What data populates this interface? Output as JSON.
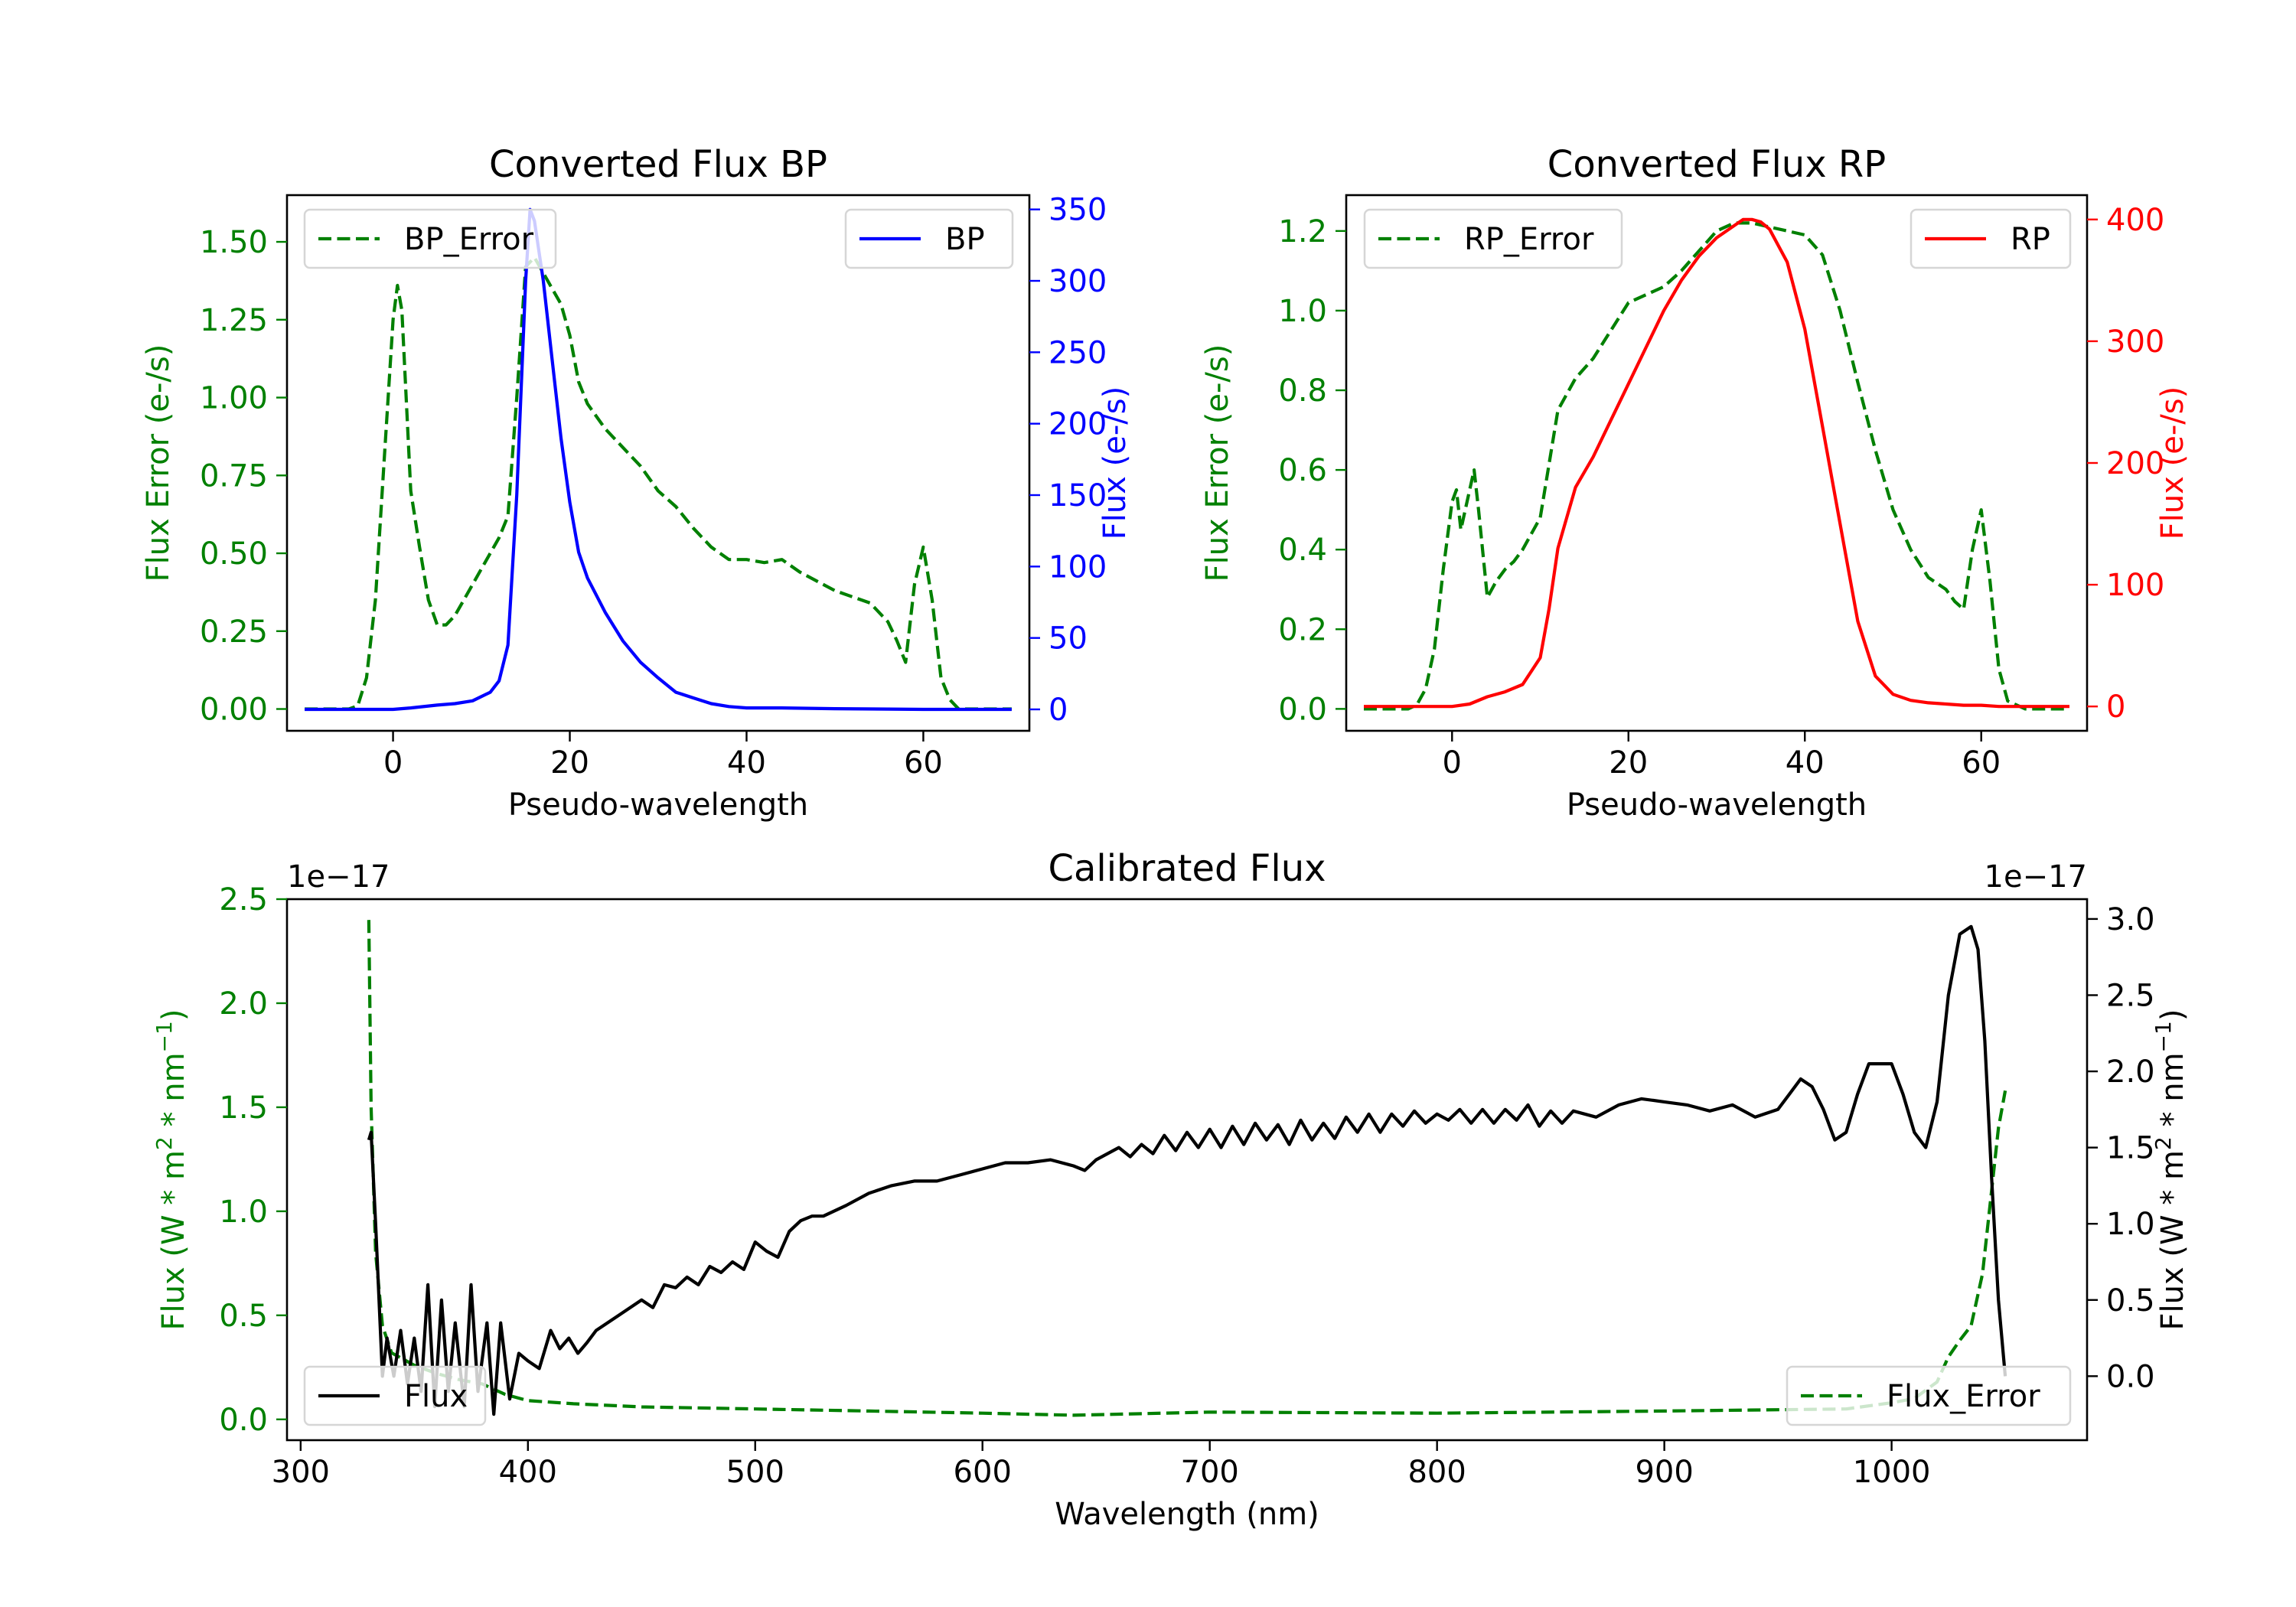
{
  "figure": {
    "background": "#ffffff"
  },
  "chart_data": [
    {
      "id": "bp",
      "type": "line",
      "title": "Converted Flux BP",
      "xlabel": "Pseudo-wavelength",
      "xlim": [
        -12,
        72
      ],
      "xticks": [
        0,
        20,
        40,
        60
      ],
      "tick_labels": {
        "x": [
          "0",
          "20",
          "40",
          "60"
        ],
        "y_left": [
          "0.00",
          "0.25",
          "0.50",
          "0.75",
          "1.00",
          "1.25",
          "1.50"
        ],
        "y_right": [
          "0",
          "50",
          "100",
          "150",
          "200",
          "250",
          "300",
          "350"
        ]
      },
      "left_axis": {
        "label": "Flux Error (e-/s)",
        "color": "#008000",
        "ylim": [
          -0.07,
          1.65
        ],
        "ticks": [
          0,
          0.25,
          0.5,
          0.75,
          1.0,
          1.25,
          1.5
        ]
      },
      "right_axis": {
        "label": "Flux (e-/s)",
        "color": "#0000ff",
        "ylim": [
          -15,
          360
        ],
        "ticks": [
          0,
          50,
          100,
          150,
          200,
          250,
          300,
          350
        ]
      },
      "series": [
        {
          "name": "BP_Error",
          "axis": "left",
          "color": "#008000",
          "dash": "dashed",
          "x": [
            -10,
            -5,
            -4,
            -3,
            -2,
            -1,
            0,
            0.5,
            1,
            2,
            3,
            4,
            5,
            6,
            7,
            8,
            10,
            12,
            13,
            14,
            15,
            16,
            17,
            18,
            19,
            20,
            21,
            22,
            24,
            26,
            28,
            30,
            32,
            34,
            36,
            38,
            40,
            42,
            44,
            46,
            50,
            54,
            56,
            57,
            58,
            59,
            60,
            61,
            62,
            63,
            64,
            65,
            70
          ],
          "values": [
            0,
            0,
            0.01,
            0.1,
            0.35,
            0.8,
            1.25,
            1.36,
            1.28,
            0.7,
            0.52,
            0.35,
            0.27,
            0.27,
            0.3,
            0.35,
            0.45,
            0.55,
            0.62,
            1.0,
            1.42,
            1.45,
            1.4,
            1.35,
            1.3,
            1.2,
            1.05,
            0.98,
            0.9,
            0.84,
            0.78,
            0.7,
            0.65,
            0.58,
            0.52,
            0.48,
            0.48,
            0.47,
            0.48,
            0.44,
            0.38,
            0.34,
            0.28,
            0.22,
            0.15,
            0.4,
            0.52,
            0.35,
            0.1,
            0.03,
            0,
            0,
            0
          ]
        },
        {
          "name": "BP",
          "axis": "right",
          "color": "#0000ff",
          "dash": "solid",
          "x": [
            -10,
            -5,
            0,
            2,
            5,
            7,
            9,
            11,
            12,
            13,
            14,
            15,
            15.5,
            16,
            17,
            18,
            19,
            20,
            21,
            22,
            24,
            26,
            28,
            30,
            32,
            34,
            36,
            38,
            40,
            44,
            50,
            56,
            60,
            66,
            70
          ],
          "values": [
            0,
            0,
            0,
            1,
            3,
            4,
            6,
            12,
            20,
            45,
            150,
            300,
            350,
            342,
            300,
            245,
            190,
            145,
            110,
            92,
            68,
            48,
            33,
            22,
            12,
            8,
            4,
            2,
            1,
            1,
            0.5,
            0.2,
            0,
            0,
            0
          ]
        }
      ],
      "legends": [
        {
          "position": "upper left",
          "entries": [
            "BP_Error"
          ]
        },
        {
          "position": "upper right",
          "entries": [
            "BP"
          ]
        }
      ]
    },
    {
      "id": "rp",
      "type": "line",
      "title": "Converted Flux RP",
      "xlabel": "Pseudo-wavelength",
      "xlim": [
        -12,
        72
      ],
      "xticks": [
        0,
        20,
        40,
        60
      ],
      "tick_labels": {
        "x": [
          "0",
          "20",
          "40",
          "60"
        ],
        "y_left": [
          "0.0",
          "0.2",
          "0.4",
          "0.6",
          "0.8",
          "1.0",
          "1.2"
        ],
        "y_right": [
          "0",
          "100",
          "200",
          "300",
          "400"
        ]
      },
      "left_axis": {
        "label": "Flux Error (e-/s)",
        "color": "#008000",
        "ylim": [
          -0.055,
          1.29
        ],
        "ticks": [
          0,
          0.2,
          0.4,
          0.6,
          0.8,
          1.0,
          1.2
        ]
      },
      "right_axis": {
        "label": "Flux (e-/s)",
        "color": "#ff0000",
        "ylim": [
          -20,
          420
        ],
        "ticks": [
          0,
          100,
          200,
          300,
          400
        ]
      },
      "series": [
        {
          "name": "RP_Error",
          "axis": "left",
          "color": "#008000",
          "dash": "dashed",
          "x": [
            -10,
            -5,
            -4,
            -3,
            -2,
            -1,
            0,
            0.5,
            1,
            2,
            2.5,
            3,
            4,
            5,
            6,
            7,
            8,
            10,
            12,
            14,
            16,
            18,
            20,
            22,
            24,
            26,
            28,
            30,
            32,
            34,
            36,
            38,
            40,
            42,
            44,
            46,
            48,
            50,
            52,
            54,
            56,
            57,
            58,
            59,
            60,
            61,
            62,
            63,
            65,
            70
          ],
          "values": [
            0,
            0,
            0.01,
            0.05,
            0.15,
            0.35,
            0.52,
            0.55,
            0.45,
            0.55,
            0.6,
            0.5,
            0.28,
            0.32,
            0.35,
            0.37,
            0.4,
            0.48,
            0.75,
            0.83,
            0.88,
            0.95,
            1.02,
            1.04,
            1.06,
            1.1,
            1.15,
            1.2,
            1.22,
            1.22,
            1.21,
            1.2,
            1.19,
            1.14,
            1.0,
            0.82,
            0.65,
            0.5,
            0.4,
            0.33,
            0.3,
            0.27,
            0.25,
            0.4,
            0.5,
            0.32,
            0.1,
            0.02,
            0,
            0
          ]
        },
        {
          "name": "RP",
          "axis": "right",
          "color": "#ff0000",
          "dash": "solid",
          "x": [
            -10,
            -5,
            0,
            2,
            4,
            6,
            8,
            10,
            11,
            12,
            13,
            14,
            16,
            18,
            20,
            22,
            24,
            26,
            28,
            30,
            32,
            33,
            34,
            35,
            36,
            38,
            40,
            42,
            44,
            46,
            48,
            50,
            52,
            54,
            56,
            58,
            60,
            62,
            65,
            70
          ],
          "values": [
            0,
            0,
            0,
            2,
            8,
            12,
            18,
            40,
            80,
            130,
            155,
            180,
            205,
            235,
            265,
            295,
            325,
            350,
            370,
            385,
            395,
            400,
            400,
            398,
            392,
            365,
            310,
            230,
            150,
            70,
            25,
            10,
            5,
            3,
            2,
            1,
            1,
            0,
            0,
            0
          ]
        }
      ],
      "legends": [
        {
          "position": "upper left",
          "entries": [
            "RP_Error"
          ]
        },
        {
          "position": "upper right",
          "entries": [
            "RP"
          ]
        }
      ]
    },
    {
      "id": "calibrated",
      "type": "line",
      "title": "Calibrated Flux",
      "xlabel": "Wavelength (nm)",
      "xlim": [
        294,
        1086
      ],
      "xticks": [
        300,
        400,
        500,
        600,
        700,
        800,
        900,
        1000
      ],
      "tick_labels": {
        "x": [
          "300",
          "400",
          "500",
          "600",
          "700",
          "800",
          "900",
          "1000"
        ],
        "y_left": [
          "0.0",
          "0.5",
          "1.0",
          "1.5",
          "2.0",
          "2.5"
        ],
        "y_right": [
          "0.0",
          "0.5",
          "1.0",
          "1.5",
          "2.0",
          "2.5",
          "3.0"
        ]
      },
      "left_axis": {
        "label": "Flux (W * m$^2$ * nm$^{-1}$)",
        "label_parts": [
          "Flux (W * m",
          "2",
          " * nm",
          "−1",
          ")"
        ],
        "color": "#008000",
        "ylim": [
          -0.1,
          2.5
        ],
        "ticks": [
          0,
          0.5,
          1.0,
          1.5,
          2.0,
          2.5
        ],
        "offset": "1e−17"
      },
      "right_axis": {
        "label": "Flux (W * m$^2$ * nm$^{-1}$)",
        "label_parts": [
          "Flux (W * m",
          "2",
          " * nm",
          "−1",
          ")"
        ],
        "color": "#000000",
        "ylim": [
          -0.42,
          3.13
        ],
        "ticks": [
          0,
          0.5,
          1.0,
          1.5,
          2.0,
          2.5,
          3.0
        ],
        "offset": "1e−17"
      },
      "series": [
        {
          "name": "Flux_Error",
          "axis": "left",
          "color": "#008000",
          "dash": "dashed",
          "x": [
            330,
            331,
            333,
            336,
            340,
            350,
            360,
            370,
            380,
            390,
            400,
            420,
            450,
            500,
            550,
            600,
            640,
            700,
            800,
            900,
            980,
            1000,
            1010,
            1020,
            1025,
            1030,
            1035,
            1040,
            1044,
            1047,
            1050
          ],
          "values": [
            2.4,
            1.5,
            0.8,
            0.45,
            0.32,
            0.26,
            0.22,
            0.19,
            0.17,
            0.12,
            0.09,
            0.075,
            0.06,
            0.05,
            0.04,
            0.03,
            0.02,
            0.035,
            0.03,
            0.04,
            0.05,
            0.08,
            0.1,
            0.18,
            0.3,
            0.38,
            0.45,
            0.7,
            1.1,
            1.4,
            1.58
          ]
        },
        {
          "name": "Flux",
          "axis": "right",
          "color": "#000000",
          "dash": "solid",
          "x": [
            330,
            331,
            333,
            336,
            338,
            341,
            344,
            347,
            350,
            353,
            356,
            359,
            362,
            365,
            368,
            372,
            375,
            378,
            382,
            385,
            388,
            392,
            396,
            400,
            405,
            410,
            414,
            418,
            422,
            426,
            430,
            440,
            450,
            455,
            460,
            465,
            470,
            475,
            480,
            485,
            490,
            495,
            500,
            505,
            510,
            515,
            520,
            525,
            530,
            540,
            550,
            560,
            570,
            580,
            590,
            600,
            610,
            620,
            630,
            640,
            645,
            650,
            660,
            665,
            670,
            675,
            680,
            685,
            690,
            695,
            700,
            705,
            710,
            715,
            720,
            725,
            730,
            735,
            740,
            745,
            750,
            755,
            760,
            765,
            770,
            775,
            780,
            785,
            790,
            795,
            800,
            805,
            810,
            815,
            820,
            825,
            830,
            835,
            840,
            845,
            850,
            855,
            860,
            870,
            880,
            890,
            900,
            910,
            920,
            930,
            940,
            950,
            955,
            960,
            965,
            970,
            975,
            980,
            985,
            990,
            1000,
            1005,
            1010,
            1015,
            1020,
            1025,
            1030,
            1035,
            1038,
            1041,
            1044,
            1047,
            1050
          ],
          "values": [
            1.55,
            1.6,
            1.0,
            0.0,
            0.25,
            0.0,
            0.3,
            -0.05,
            0.25,
            -0.1,
            0.6,
            -0.2,
            0.5,
            -0.1,
            0.35,
            -0.2,
            0.6,
            -0.1,
            0.35,
            -0.25,
            0.35,
            -0.15,
            0.15,
            0.1,
            0.05,
            0.3,
            0.18,
            0.25,
            0.15,
            0.22,
            0.3,
            0.4,
            0.5,
            0.45,
            0.6,
            0.58,
            0.65,
            0.6,
            0.72,
            0.68,
            0.75,
            0.7,
            0.88,
            0.82,
            0.78,
            0.95,
            1.02,
            1.05,
            1.05,
            1.12,
            1.2,
            1.25,
            1.28,
            1.28,
            1.32,
            1.36,
            1.4,
            1.4,
            1.42,
            1.38,
            1.35,
            1.42,
            1.5,
            1.44,
            1.52,
            1.46,
            1.58,
            1.48,
            1.6,
            1.5,
            1.62,
            1.5,
            1.64,
            1.52,
            1.66,
            1.55,
            1.65,
            1.52,
            1.68,
            1.55,
            1.66,
            1.56,
            1.7,
            1.6,
            1.72,
            1.6,
            1.72,
            1.64,
            1.74,
            1.66,
            1.72,
            1.68,
            1.75,
            1.66,
            1.75,
            1.66,
            1.75,
            1.68,
            1.78,
            1.64,
            1.74,
            1.66,
            1.74,
            1.7,
            1.78,
            1.82,
            1.8,
            1.78,
            1.74,
            1.78,
            1.7,
            1.75,
            1.85,
            1.95,
            1.9,
            1.75,
            1.55,
            1.6,
            1.85,
            2.05,
            2.05,
            1.85,
            1.6,
            1.5,
            1.8,
            2.5,
            2.9,
            2.95,
            2.8,
            2.2,
            1.3,
            0.5,
            0.0
          ]
        }
      ],
      "legends": [
        {
          "position": "lower left",
          "entries": [
            "Flux"
          ]
        },
        {
          "position": "lower right",
          "entries": [
            "Flux_Error"
          ]
        }
      ]
    }
  ]
}
